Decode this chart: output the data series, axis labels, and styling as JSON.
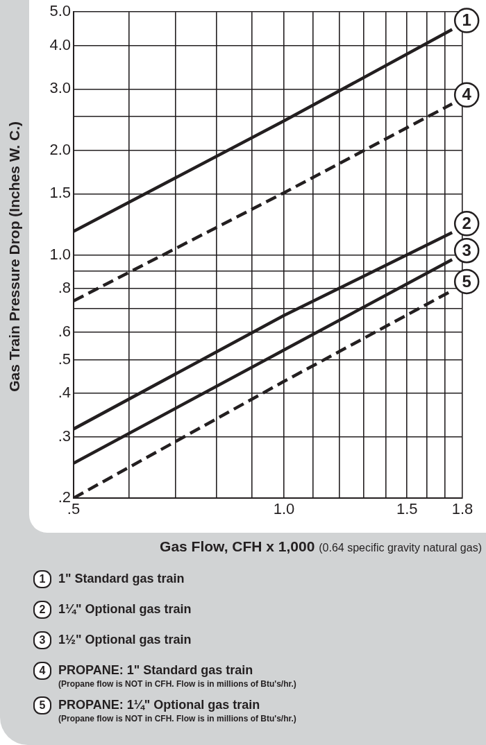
{
  "chart_data": {
    "type": "line",
    "xlabel": "Gas Flow, CFH x 1,000 (0.64 specific gravity natural gas)",
    "ylabel": "Gas Train Pressure Drop (Inches W. C.)",
    "log": "xy",
    "xlim": [
      0.5,
      1.8
    ],
    "ylim": [
      0.2,
      5.0
    ],
    "xticks": [
      {
        "value": 0.5,
        "label": ".5"
      },
      {
        "value": 0.6,
        "label": null
      },
      {
        "value": 0.7,
        "label": null
      },
      {
        "value": 0.8,
        "label": null
      },
      {
        "value": 0.9,
        "label": null
      },
      {
        "value": 1.0,
        "label": "1.0"
      },
      {
        "value": 1.1,
        "label": null
      },
      {
        "value": 1.2,
        "label": null
      },
      {
        "value": 1.3,
        "label": null
      },
      {
        "value": 1.4,
        "label": null
      },
      1.5,
      {
        "value": 1.6,
        "label": null
      },
      {
        "value": 1.7,
        "label": null
      },
      1.8
    ],
    "yticks": [
      {
        "value": 0.2,
        "label": ".2"
      },
      {
        "value": 0.3,
        "label": ".3"
      },
      {
        "value": 0.4,
        "label": ".4"
      },
      {
        "value": 0.5,
        "label": ".5"
      },
      {
        "value": 0.6,
        "label": ".6"
      },
      {
        "value": 0.7,
        "label": null
      },
      {
        "value": 0.8,
        "label": ".8"
      },
      {
        "value": 0.9,
        "label": null
      },
      {
        "value": 1.0,
        "label": "1.0"
      },
      1.5,
      {
        "value": 2.0,
        "label": "2.0"
      },
      {
        "value": 2.5,
        "label": null
      },
      {
        "value": 3.0,
        "label": "3.0"
      },
      {
        "value": 4.0,
        "label": "4.0"
      },
      {
        "value": 5.0,
        "label": "5.0"
      }
    ],
    "grid": true,
    "legend": "right",
    "marker": "none",
    "series": [
      {
        "name": "1",
        "color": "#231f20",
        "line_style": "solid",
        "x": [
          0.5,
          1.0,
          1.74
        ],
        "values": [
          1.17,
          2.43,
          4.45
        ]
      },
      {
        "name": "2",
        "color": "#231f20",
        "line_style": "solid",
        "x": [
          0.5,
          1.0,
          1.74
        ],
        "values": [
          0.316,
          0.67,
          1.16
        ]
      },
      {
        "name": "3",
        "color": "#231f20",
        "line_style": "solid",
        "x": [
          0.5,
          1.0,
          1.74
        ],
        "values": [
          0.252,
          0.533,
          0.97
        ]
      },
      {
        "name": "4",
        "color": "#231f20",
        "line_style": "dashed",
        "x": [
          0.5,
          1.0,
          1.74
        ],
        "values": [
          0.738,
          1.51,
          2.72
        ]
      },
      {
        "name": "5",
        "color": "#231f20",
        "line_style": "dashed",
        "x": [
          0.5,
          1.0,
          1.74
        ],
        "values": [
          0.2,
          0.433,
          0.79
        ]
      }
    ],
    "annotations": [
      "1\" Standard gas train",
      "1¼\" Optional gas train",
      "1½\" Optional gas train",
      "PROPANE: 1\" Standard gas train\n(Propane flow is NOT in CFH. Flow is in millions of Btu's/hr.)",
      "PROPANE: 1¼\" Optional gas train\n(Propane flow is NOT in CFH. Flow is in millions of Btu's/hr.)"
    ]
  }
}
